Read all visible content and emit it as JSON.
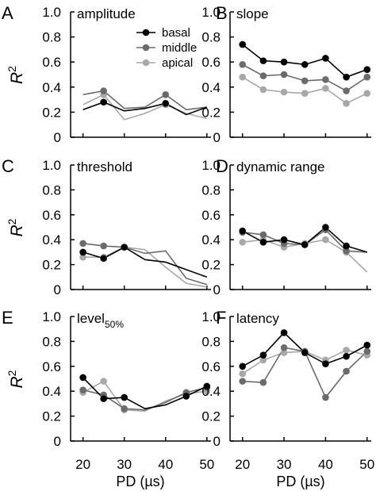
{
  "figure": {
    "xlabel": "PD (µs)",
    "ylabel_base": "R",
    "ylabel_sup": "2",
    "legend": [
      "basal",
      "middle",
      "apical"
    ],
    "y_ticks": [
      "0",
      "0.2",
      "0.4",
      "0.6",
      "0.8",
      "1.0"
    ],
    "x_ticks_left": [
      "20",
      "30",
      "40",
      "50"
    ],
    "x_ticks_right": [
      "20",
      "30",
      "40",
      "50"
    ],
    "colors": {
      "basal": "#000000",
      "middle": "#6b6b6b",
      "apical": "#a8a8a8"
    }
  },
  "panels": [
    {
      "letter": "A",
      "title": "amplitude",
      "title_sub": ""
    },
    {
      "letter": "B",
      "title": "slope",
      "title_sub": ""
    },
    {
      "letter": "C",
      "title": "threshold",
      "title_sub": ""
    },
    {
      "letter": "D",
      "title": "dynamic range",
      "title_sub": ""
    },
    {
      "letter": "E",
      "title": "level",
      "title_sub": "50%"
    },
    {
      "letter": "F",
      "title": "latency",
      "title_sub": ""
    }
  ],
  "chart_data": [
    {
      "type": "line",
      "panel": "A",
      "title": "amplitude",
      "x": [
        20,
        25,
        30,
        35,
        40,
        45,
        50
      ],
      "ylim": [
        0,
        1
      ],
      "xlim": [
        17,
        51
      ],
      "series": [
        {
          "name": "basal",
          "values": [
            0.22,
            0.28,
            0.21,
            0.23,
            0.27,
            0.18,
            0.24
          ]
        },
        {
          "name": "middle",
          "values": [
            0.34,
            0.37,
            0.23,
            0.24,
            0.34,
            0.22,
            0.24
          ]
        },
        {
          "name": "apical",
          "values": [
            0.26,
            0.34,
            0.14,
            0.19,
            0.26,
            0.19,
            0.15
          ]
        }
      ],
      "markers": [
        false,
        true,
        false,
        false,
        true,
        false,
        false
      ]
    },
    {
      "type": "line",
      "panel": "B",
      "title": "slope",
      "x": [
        20,
        25,
        30,
        35,
        40,
        45,
        50
      ],
      "ylim": [
        0,
        1
      ],
      "xlim": [
        17,
        51
      ],
      "series": [
        {
          "name": "basal",
          "values": [
            0.74,
            0.61,
            0.6,
            0.58,
            0.63,
            0.48,
            0.54
          ]
        },
        {
          "name": "middle",
          "values": [
            0.58,
            0.49,
            0.5,
            0.45,
            0.46,
            0.37,
            0.48
          ]
        },
        {
          "name": "apical",
          "values": [
            0.48,
            0.38,
            0.36,
            0.35,
            0.39,
            0.27,
            0.35
          ]
        }
      ],
      "markers": [
        true,
        true,
        true,
        true,
        true,
        true,
        true
      ]
    },
    {
      "type": "line",
      "panel": "C",
      "title": "threshold",
      "x": [
        20,
        25,
        30,
        35,
        40,
        45,
        50
      ],
      "ylim": [
        0,
        1
      ],
      "xlim": [
        17,
        51
      ],
      "series": [
        {
          "name": "basal",
          "values": [
            0.3,
            0.25,
            0.34,
            0.24,
            0.22,
            0.16,
            0.1
          ]
        },
        {
          "name": "middle",
          "values": [
            0.37,
            0.35,
            0.34,
            0.29,
            0.31,
            0.09,
            0.04
          ]
        },
        {
          "name": "apical",
          "values": [
            0.26,
            0.26,
            0.34,
            0.32,
            0.18,
            0.05,
            0.02
          ]
        }
      ],
      "markers": [
        true,
        true,
        true,
        false,
        false,
        false,
        false
      ]
    },
    {
      "type": "line",
      "panel": "D",
      "title": "dynamic range",
      "x": [
        20,
        25,
        30,
        35,
        40,
        45,
        50
      ],
      "ylim": [
        0,
        1
      ],
      "xlim": [
        17,
        51
      ],
      "series": [
        {
          "name": "basal",
          "values": [
            0.47,
            0.38,
            0.4,
            0.36,
            0.5,
            0.35,
            0.3
          ]
        },
        {
          "name": "middle",
          "values": [
            0.46,
            0.44,
            0.37,
            0.36,
            0.48,
            0.31,
            0.3
          ]
        },
        {
          "name": "apical",
          "values": [
            0.38,
            0.4,
            0.34,
            0.37,
            0.4,
            0.3,
            0.14
          ]
        }
      ],
      "markers": [
        true,
        true,
        true,
        true,
        true,
        true,
        false
      ]
    },
    {
      "type": "line",
      "panel": "E",
      "title": "level",
      "title_subscript": "50%",
      "x": [
        20,
        25,
        30,
        35,
        40,
        45,
        50
      ],
      "ylim": [
        0,
        1
      ],
      "xlim": [
        17,
        51
      ],
      "series": [
        {
          "name": "basal",
          "values": [
            0.51,
            0.34,
            0.35,
            0.26,
            0.29,
            0.36,
            0.44
          ]
        },
        {
          "name": "middle",
          "values": [
            0.41,
            0.37,
            0.26,
            0.25,
            0.31,
            0.39,
            0.43
          ]
        },
        {
          "name": "apical",
          "values": [
            0.39,
            0.48,
            0.25,
            0.24,
            0.32,
            0.38,
            0.4
          ]
        }
      ],
      "markers": [
        true,
        true,
        true,
        false,
        false,
        true,
        true
      ]
    },
    {
      "type": "line",
      "panel": "F",
      "title": "latency",
      "x": [
        20,
        25,
        30,
        35,
        40,
        45,
        50
      ],
      "ylim": [
        0,
        1
      ],
      "xlim": [
        17,
        51
      ],
      "series": [
        {
          "name": "basal",
          "values": [
            0.6,
            0.69,
            0.87,
            0.71,
            0.62,
            0.68,
            0.77
          ]
        },
        {
          "name": "middle",
          "values": [
            0.48,
            0.47,
            0.75,
            0.72,
            0.35,
            0.56,
            0.72
          ]
        },
        {
          "name": "apical",
          "values": [
            0.54,
            0.65,
            0.71,
            0.72,
            0.65,
            0.73,
            0.69
          ]
        }
      ],
      "markers": [
        true,
        true,
        true,
        true,
        true,
        true,
        true
      ]
    }
  ]
}
